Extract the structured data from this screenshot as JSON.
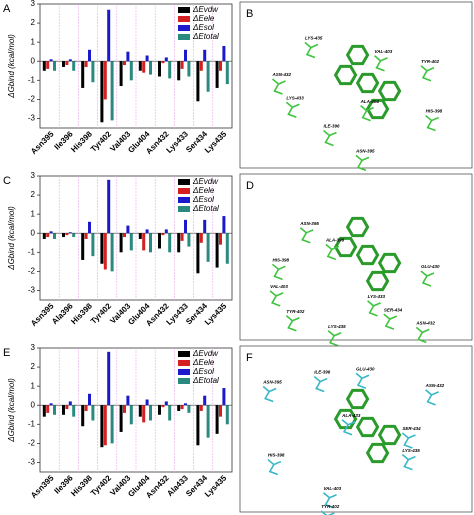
{
  "chart_data": [
    {
      "type": "bar",
      "panel": "A",
      "ylabel": "ΔGbind (kcal/mol)",
      "categories": [
        "Asn395",
        "Ile396",
        "His398",
        "Tyr402",
        "Val403",
        "Glu404",
        "Asn432",
        "Lys433",
        "Ser434",
        "Lys435"
      ],
      "series": [
        {
          "name": "ΔEvdw",
          "color": "#000000",
          "values": [
            -0.5,
            -0.3,
            -1.4,
            -3.2,
            -1.3,
            -0.5,
            -0.8,
            -1.0,
            -2.1,
            -1.4
          ]
        },
        {
          "name": "ΔEele",
          "color": "#d42020",
          "values": [
            -0.4,
            -0.2,
            -0.3,
            -2.0,
            -0.2,
            -0.6,
            -0.1,
            -0.4,
            -0.5,
            -0.5
          ]
        },
        {
          "name": "ΔEsol",
          "color": "#1a1acc",
          "values": [
            0.1,
            0.1,
            0.6,
            2.7,
            0.5,
            0.3,
            0.2,
            0.6,
            0.6,
            0.8
          ]
        },
        {
          "name": "ΔEtotal",
          "color": "#2a8a80",
          "values": [
            -0.5,
            -0.5,
            -1.1,
            -3.1,
            -1.0,
            -0.7,
            -0.9,
            -0.8,
            -1.6,
            -1.2
          ]
        }
      ],
      "ylim": [
        -3.5,
        3
      ],
      "yticks": [
        -3,
        -2,
        -1,
        0,
        1,
        2,
        3
      ]
    },
    {
      "type": "bar",
      "panel": "C",
      "ylabel": "ΔGbind (kcal/mol)",
      "categories": [
        "Asn395",
        "Ala396",
        "His398",
        "Tyr402",
        "Val403",
        "Glu404",
        "Asn432",
        "Lys433",
        "Ser434",
        "Lys435"
      ],
      "series": [
        {
          "name": "ΔEvdw",
          "color": "#000000",
          "values": [
            -0.3,
            -0.2,
            -1.4,
            -1.6,
            -1.0,
            -0.3,
            -0.8,
            -1.0,
            -2.1,
            -1.8
          ]
        },
        {
          "name": "ΔEele",
          "color": "#d42020",
          "values": [
            -0.2,
            -0.1,
            -0.3,
            -1.9,
            -0.2,
            -0.9,
            -0.1,
            -0.4,
            -0.5,
            -0.6
          ]
        },
        {
          "name": "ΔEsol",
          "color": "#1a1acc",
          "values": [
            0.1,
            0.05,
            0.6,
            2.8,
            0.4,
            0.2,
            0.2,
            0.7,
            0.7,
            0.9
          ]
        },
        {
          "name": "ΔEtotal",
          "color": "#2a8a80",
          "values": [
            -0.3,
            -0.2,
            -1.2,
            -2.0,
            -0.9,
            -1.0,
            -1.0,
            -0.7,
            -1.5,
            -1.6
          ]
        }
      ],
      "ylim": [
        -3.5,
        3
      ],
      "yticks": [
        -3,
        -2,
        -1,
        0,
        1,
        2,
        3
      ]
    },
    {
      "type": "bar",
      "panel": "E",
      "ylabel": "ΔGbind (kcal/mol)",
      "categories": [
        "Asn395",
        "Ile396",
        "His398",
        "Tyr402",
        "Val403",
        "Glu404",
        "Asn432",
        "Ala433",
        "Ser434",
        "Lys435"
      ],
      "series": [
        {
          "name": "ΔEvdw",
          "color": "#000000",
          "values": [
            -0.6,
            -0.5,
            -1.1,
            -2.2,
            -1.4,
            -0.6,
            -0.5,
            -0.3,
            -2.1,
            -1.5
          ]
        },
        {
          "name": "ΔEele",
          "color": "#d42020",
          "values": [
            -0.4,
            -0.2,
            -0.3,
            -2.1,
            -0.4,
            -0.9,
            -0.1,
            -0.2,
            -0.3,
            -0.6
          ]
        },
        {
          "name": "ΔEsol",
          "color": "#1a1acc",
          "values": [
            0.1,
            0.2,
            0.6,
            2.8,
            0.5,
            0.3,
            0.2,
            0.1,
            0.5,
            0.9
          ]
        },
        {
          "name": "ΔEtotal",
          "color": "#2a8a80",
          "values": [
            -0.5,
            -0.6,
            -0.8,
            -2.0,
            -1.0,
            -0.8,
            -0.8,
            -0.4,
            -1.7,
            -1.0
          ]
        }
      ],
      "ylim": [
        -3.5,
        3
      ],
      "yticks": [
        -3,
        -2,
        -1,
        0,
        1,
        2,
        3
      ]
    }
  ],
  "structures": [
    {
      "panel": "B",
      "residues": [
        "LYS-435",
        "VAL-403",
        "TYR-402",
        "ASN-432",
        "LYS-433",
        "HIS-398",
        "ALA-404",
        "ILE-396",
        "ASN-395"
      ]
    },
    {
      "panel": "D",
      "residues": [
        "ASN-395",
        "ALA-396",
        "HIS-398",
        "GLU-430",
        "VAL-403",
        "LYS-433",
        "SER-434",
        "TYR-402",
        "ASN-432",
        "LYS-435"
      ]
    },
    {
      "panel": "F",
      "residues": [
        "ASN-395",
        "ILE-396",
        "GLU-430",
        "ASN-432",
        "ALA-433",
        "SER-434",
        "HIS-398",
        "LYS-435",
        "VAL-403",
        "TYR-402"
      ]
    }
  ]
}
